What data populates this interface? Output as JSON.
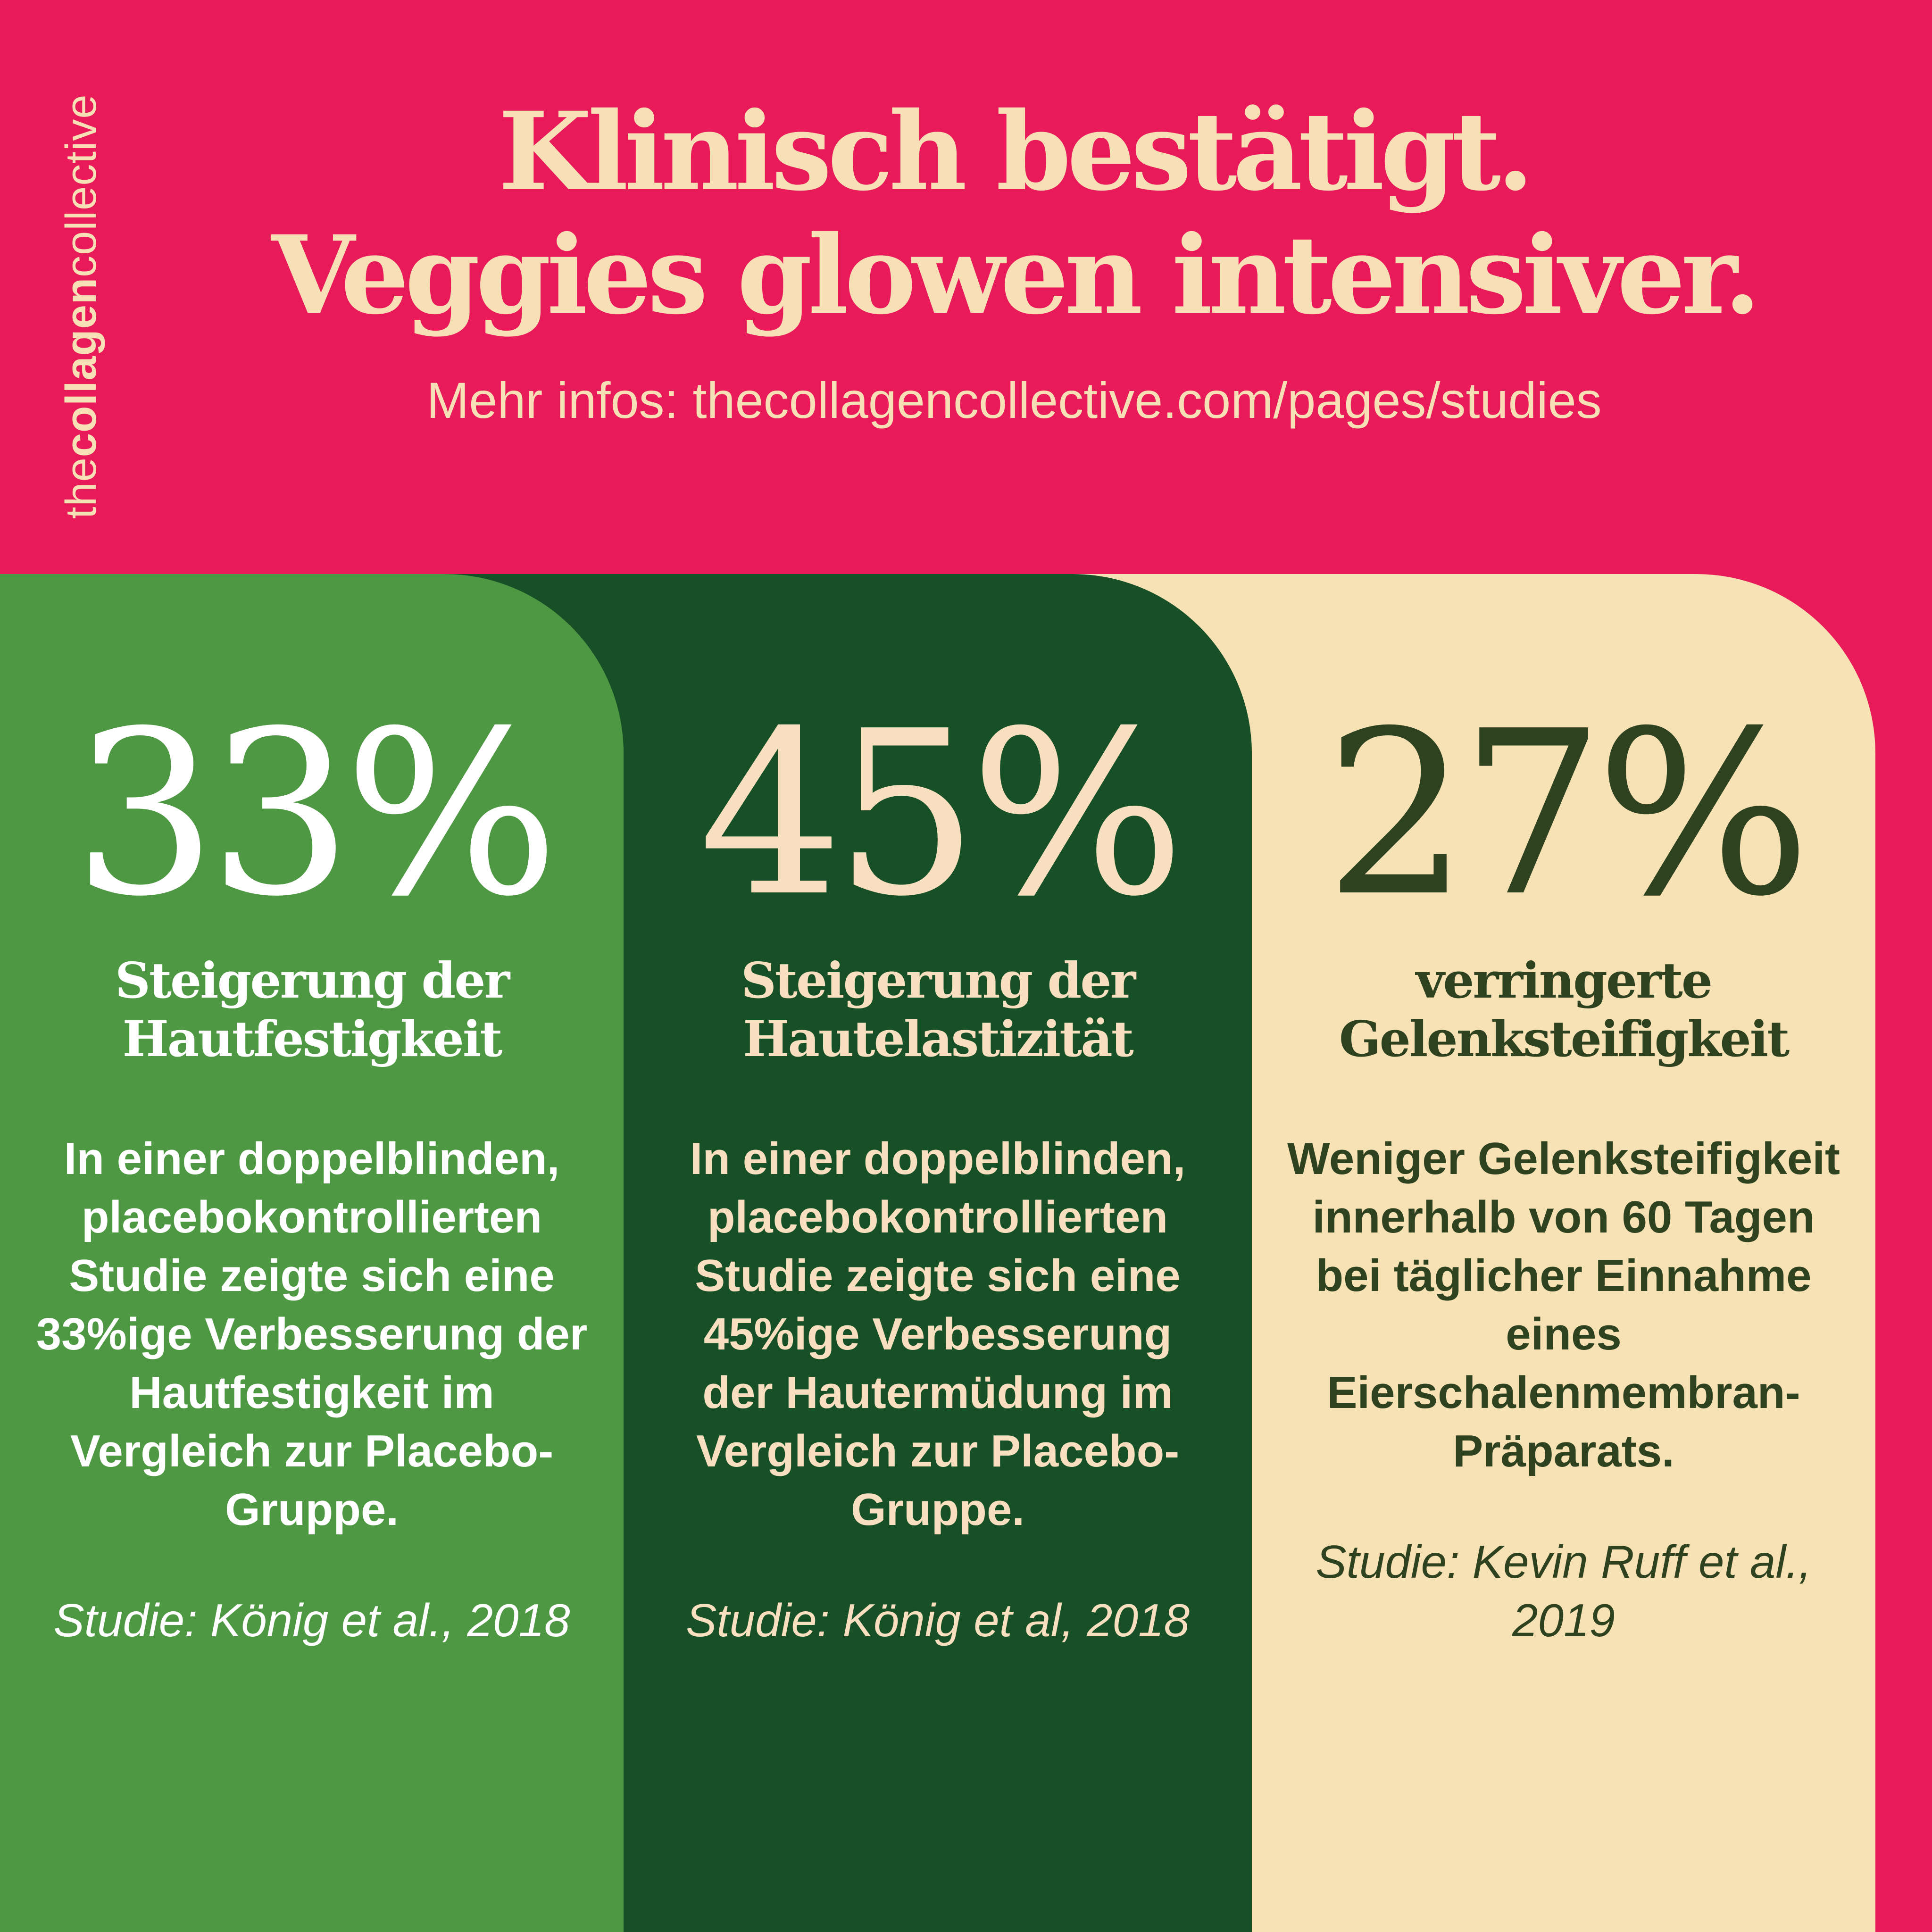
{
  "brand": {
    "prefix": "the",
    "bold": "collagen",
    "suffix": "collective"
  },
  "headline": {
    "line1": "Klinisch bestätigt.",
    "line2": "Veggies glowen intensiver."
  },
  "subtitle": "Mehr infos: thecollagencollective.com/pages/studies",
  "colors": {
    "background": "#E91A5A",
    "card1": "#4E9843",
    "card2": "#174F27",
    "card3": "#F7E2B5"
  },
  "stats": [
    {
      "value": "33%",
      "title_line1": "Steigerung der",
      "title_line2": "Hautfestigkeit",
      "body": "In einer doppelblinden, placebokontrollierten Studie zeigte sich eine 33%ige Verbesserung der Hautfestigkeit im Vergleich zur Placebo-Gruppe.",
      "citation": "Studie: König et al., 2018"
    },
    {
      "value": "45%",
      "title_line1": "Steigerung der",
      "title_line2": "Hautelastizität",
      "body": "In einer doppelblinden, placebokontrollierten Studie zeigte sich eine 45%ige Verbesserung der Hautermüdung im Vergleich zur Placebo-Gruppe.",
      "citation": "Studie: König et al, 2018"
    },
    {
      "value": "27%",
      "title_line1": "verringerte",
      "title_line2": "Gelenksteifigkeit",
      "body": "Weniger Gelenksteifigkeit innerhalb von 60 Tagen bei täglicher Einnahme eines Eierschalenmembran-Präparats.",
      "citation": "Studie: Kevin Ruff et al., 2019"
    }
  ]
}
